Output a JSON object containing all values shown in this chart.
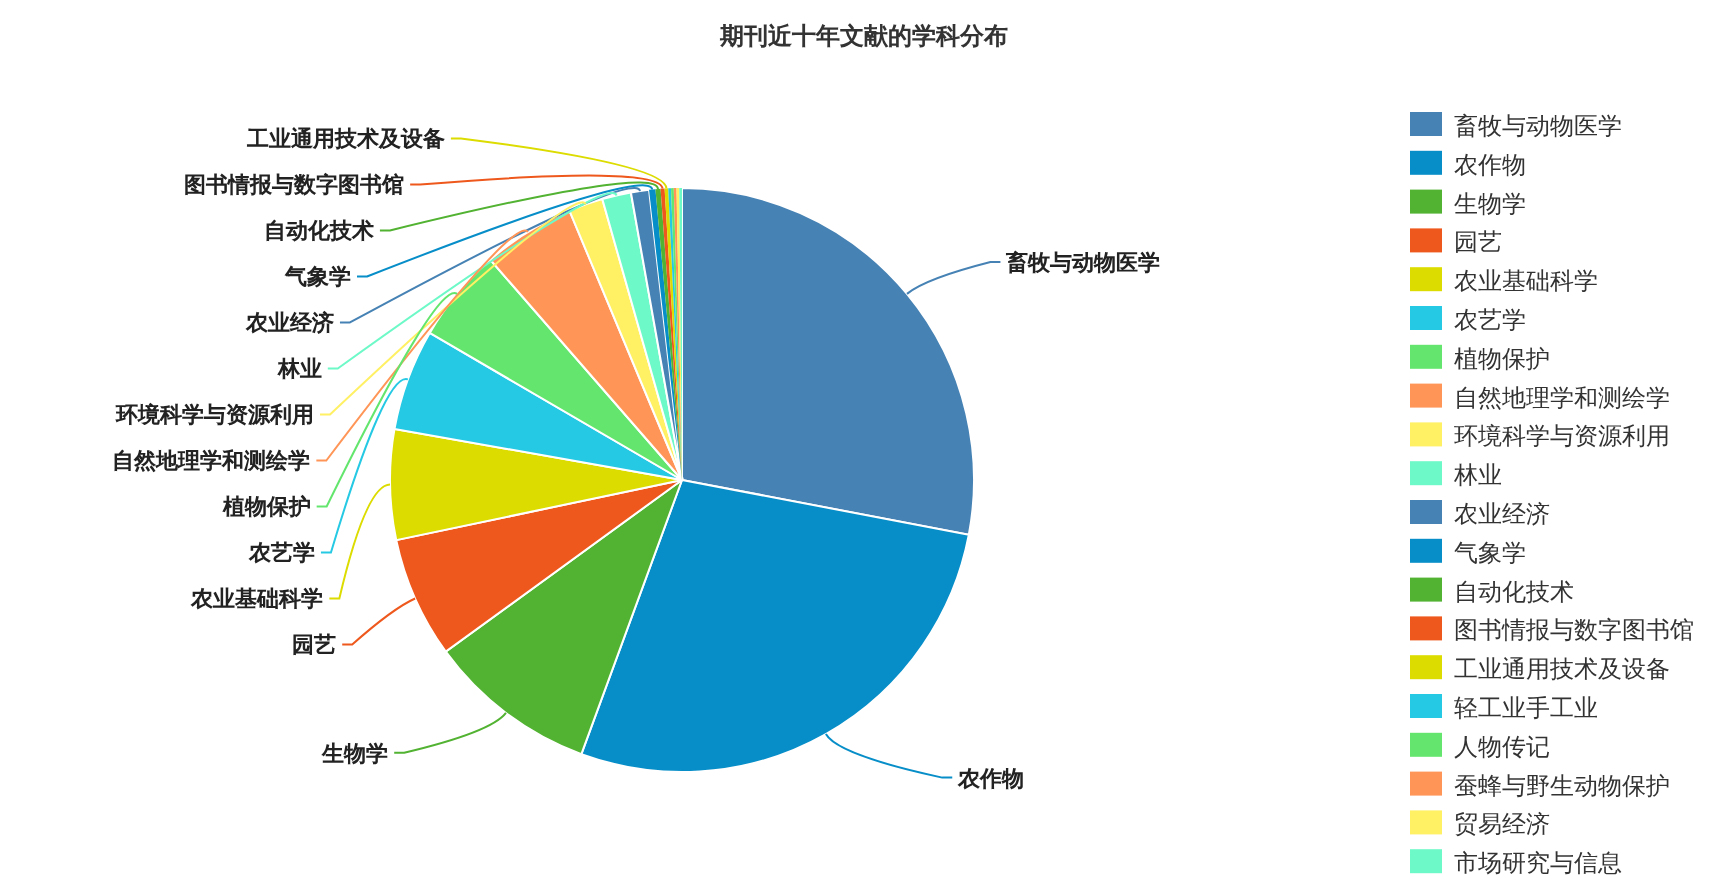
{
  "chart_data": {
    "type": "pie",
    "title": "期刊近十年文献的学科分布",
    "categories": [
      "畜牧与动物医学",
      "农作物",
      "生物学",
      "园艺",
      "农业基础科学",
      "农艺学",
      "植物保护",
      "自然地理学和测绘学",
      "环境科学与资源利用",
      "林业",
      "农业经济",
      "气象学",
      "自动化技术",
      "图书情报与数字图书馆",
      "工业通用技术及设备",
      "轻工业手工业",
      "人物传记",
      "蚕蜂与野生动物保护",
      "贸易经济",
      "市场研究与信息"
    ],
    "values": [
      28,
      27.6,
      9.4,
      6.7,
      6.1,
      5.6,
      5.2,
      5.1,
      1.9,
      1.6,
      1.0,
      0.35,
      0.28,
      0.22,
      0.2,
      0.15,
      0.15,
      0.15,
      0.15,
      0.15
    ],
    "colors": [
      "#4682b4",
      "#078ec8",
      "#52b232",
      "#ee581c",
      "#dcdc00",
      "#26c9e3",
      "#64e66e",
      "#ff9658",
      "#fff064",
      "#6ef9c8",
      "#4682b4",
      "#078ec8",
      "#52b232",
      "#ee581c",
      "#dcdc00",
      "#26c9e3",
      "#64e66e",
      "#ff9658",
      "#fff064",
      "#6ef9c8"
    ],
    "legend": "right"
  }
}
